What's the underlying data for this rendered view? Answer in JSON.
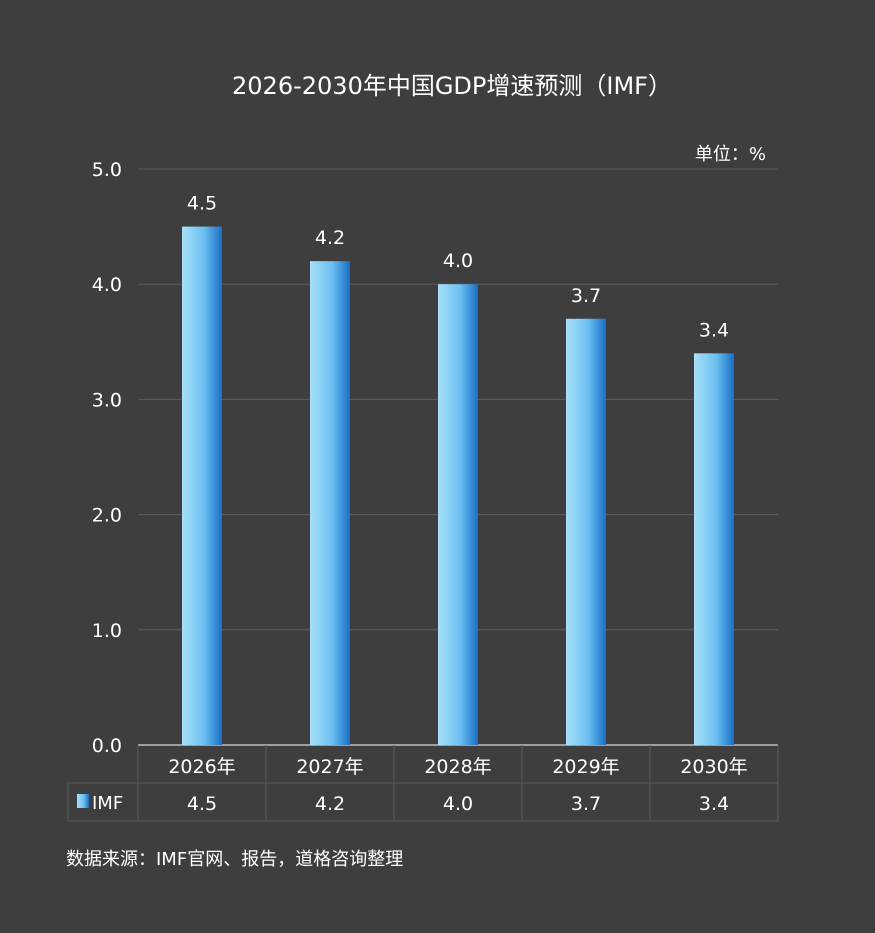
{
  "chart_data": {
    "type": "bar",
    "title": "2026-2030年中国GDP增速预测（IMF）",
    "unit_label": "单位：%",
    "categories": [
      "2026年",
      "2027年",
      "2028年",
      "2029年",
      "2030年"
    ],
    "series": [
      {
        "name": "IMF",
        "values": [
          4.5,
          4.2,
          4.0,
          3.7,
          3.4
        ]
      }
    ],
    "data_labels": [
      "4.5",
      "4.2",
      "4.0",
      "3.7",
      "3.4"
    ],
    "y_ticks": [
      "0.0",
      "1.0",
      "2.0",
      "3.0",
      "4.0",
      "5.0"
    ],
    "ylim": [
      0,
      5
    ],
    "grid": true,
    "data_table": true,
    "legend": "in-table",
    "colors": {
      "bar_light": "#a8e0fb",
      "bar_dark": "#1a6fc6",
      "background": "#3e3e3e",
      "grid": "#5c5c5c",
      "table_border": "#5a5a5a"
    }
  },
  "source": "数据来源：IMF官网、报告，道格咨询整理"
}
